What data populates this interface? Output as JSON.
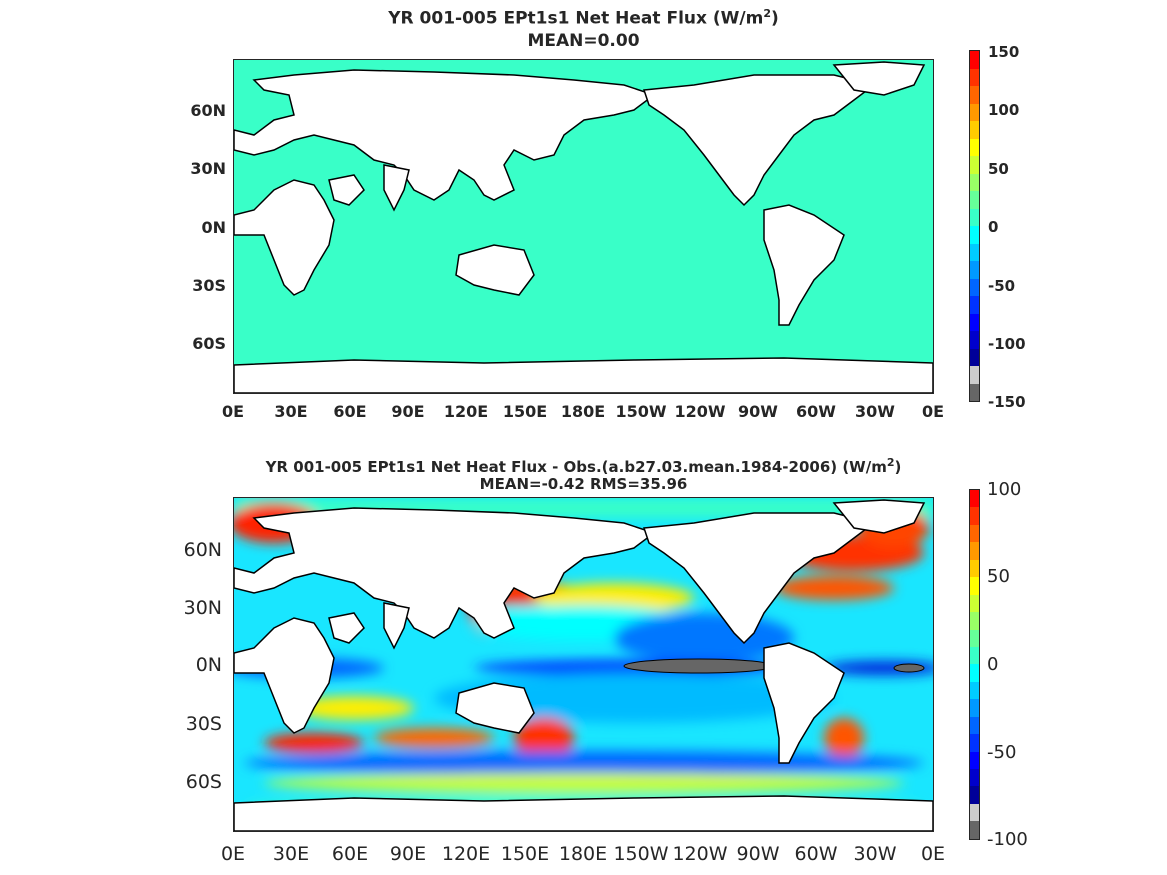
{
  "panels": [
    {
      "title_main": "YR 001-005 EPt1s1  Net Heat Flux (W/m",
      "title_sup": "2",
      "title_end": ")",
      "subtitle": "MEAN=0.00",
      "lat_labels": [
        "60N",
        "30N",
        "0N",
        "30S",
        "60S"
      ],
      "lon_labels": [
        "0E",
        "30E",
        "60E",
        "90E",
        "120E",
        "150E",
        "180E",
        "150W",
        "120W",
        "90W",
        "60W",
        "30W",
        "0E"
      ],
      "colorbar_labels": [
        "150",
        "100",
        "50",
        "0",
        "-50",
        "-100",
        "-150"
      ],
      "ocean_color": "#39ffc8"
    },
    {
      "title_main": "YR 001-005 EPt1s1  Net Heat Flux - Obs.(a.b27.03.mean.1984-2006) (W/m",
      "title_sup": "2",
      "title_end": ")",
      "subtitle": "MEAN=-0.42 RMS=35.96",
      "lat_labels": [
        "60N",
        "30N",
        "0N",
        "30S",
        "60S"
      ],
      "lon_labels": [
        "0E",
        "30E",
        "60E",
        "90E",
        "120E",
        "150E",
        "180E",
        "150W",
        "120W",
        "90W",
        "60W",
        "30W",
        "0E"
      ],
      "colorbar_labels": [
        "100",
        "50",
        "0",
        "-50",
        "-100"
      ]
    }
  ],
  "colormap": [
    "#ff0000",
    "#ff3300",
    "#ff6600",
    "#ff9900",
    "#ffcc00",
    "#ffff00",
    "#ccff33",
    "#99ff66",
    "#66ff99",
    "#39ffc8",
    "#00ffff",
    "#00ccff",
    "#0099ff",
    "#0066ff",
    "#0033ff",
    "#0000ff",
    "#0000cc",
    "#000099",
    "#cccccc",
    "#666666"
  ]
}
